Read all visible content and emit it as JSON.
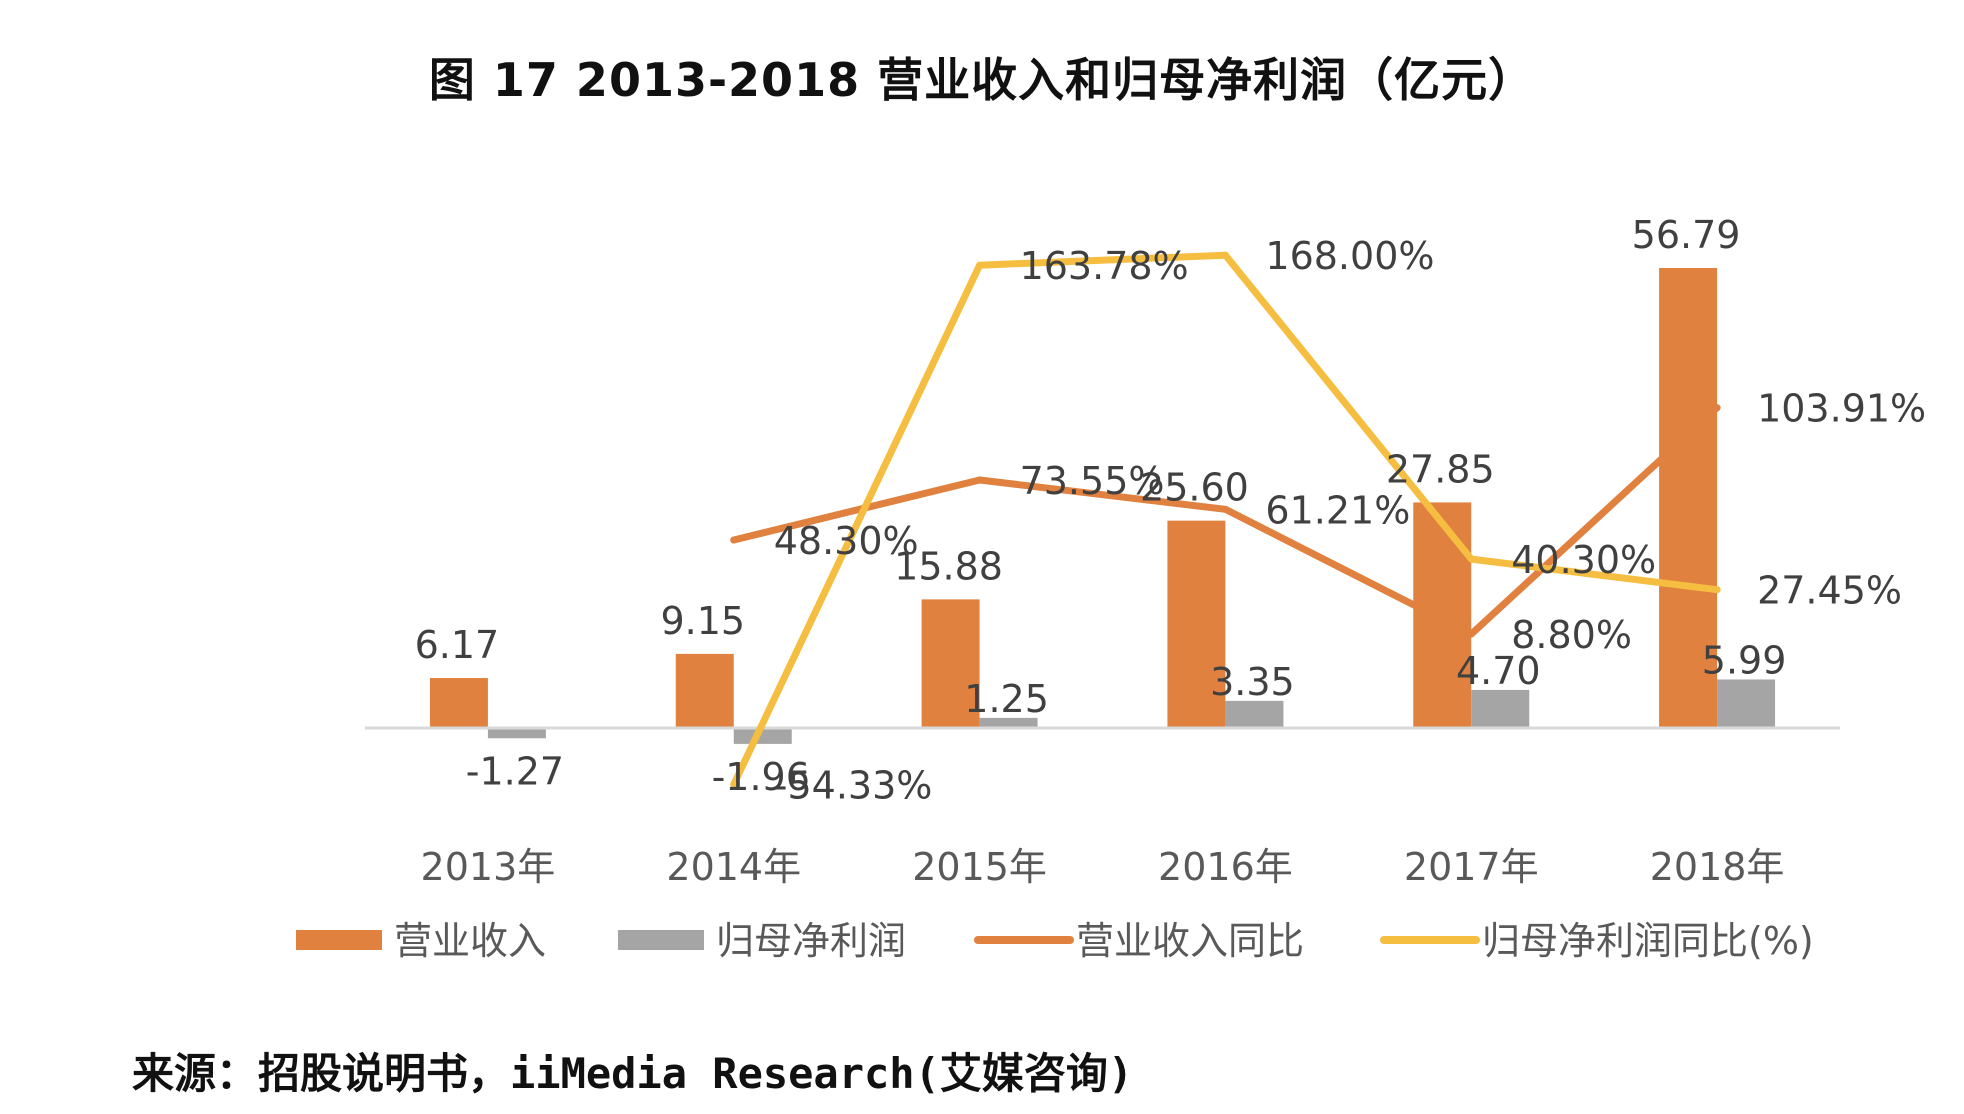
{
  "chart_data": {
    "type": "bar",
    "title": "图 17   2013-2018 营业收入和归母净利润（亿元）",
    "categories": [
      "2013年",
      "2014年",
      "2015年",
      "2016年",
      "2017年",
      "2018年"
    ],
    "series": [
      {
        "name": "营业收入",
        "kind": "bar",
        "axis": "left",
        "color": "#E0813F",
        "values": [
          6.17,
          9.15,
          15.88,
          25.6,
          27.85,
          56.79
        ],
        "labels": [
          "6.17",
          "9.15",
          "15.88",
          "25.60",
          "27.85",
          "56.79"
        ]
      },
      {
        "name": "归母净利润",
        "kind": "bar",
        "axis": "left",
        "color": "#A5A5A5",
        "values": [
          -1.27,
          -1.96,
          1.25,
          3.35,
          4.7,
          5.99
        ],
        "labels": [
          "-1.27",
          "-1.96",
          "1.25",
          "3.35",
          "4.70",
          "5.99"
        ]
      },
      {
        "name": "营业收入同比",
        "kind": "line",
        "axis": "right",
        "color": "#E0813F",
        "values": [
          null,
          48.3,
          73.55,
          61.21,
          8.8,
          103.91
        ],
        "labels": [
          "",
          "48.30%",
          "73.55%",
          "61.21%",
          "8.80%",
          "103.91%"
        ]
      },
      {
        "name": "归母净利润同比(%)",
        "kind": "line",
        "axis": "right",
        "color": "#F5BE41",
        "values": [
          null,
          -54.33,
          163.78,
          168.0,
          40.3,
          27.45
        ],
        "labels": [
          "",
          "-54.33%",
          "163.78%",
          "168.00%",
          "40.30%",
          "27.45%"
        ]
      }
    ],
    "legend_position": "bottom",
    "grid": false
  },
  "source": "来源：招股说明书，iiMedia Research(艾媒咨询)"
}
